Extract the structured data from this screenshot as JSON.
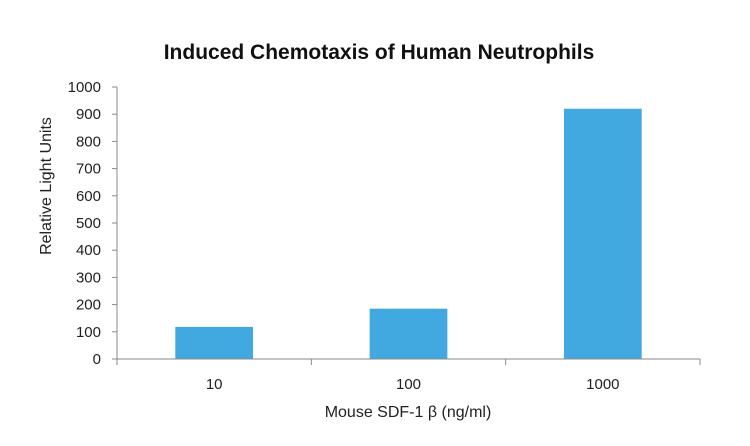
{
  "chart_data": {
    "type": "bar",
    "title": "Induced Chemotaxis of Human Neutrophils",
    "xlabel": "Mouse SDF-1 β (ng/ml)",
    "ylabel": "Relative Light Units",
    "categories": [
      "10",
      "100",
      "1000"
    ],
    "values": [
      118,
      185,
      920
    ],
    "ylim": [
      0,
      1000
    ],
    "yticks": [
      "0",
      "100",
      "200",
      "300",
      "400",
      "500",
      "600",
      "700",
      "800",
      "900",
      "1000"
    ],
    "grid": false,
    "bar_color": "#41a9e0"
  }
}
